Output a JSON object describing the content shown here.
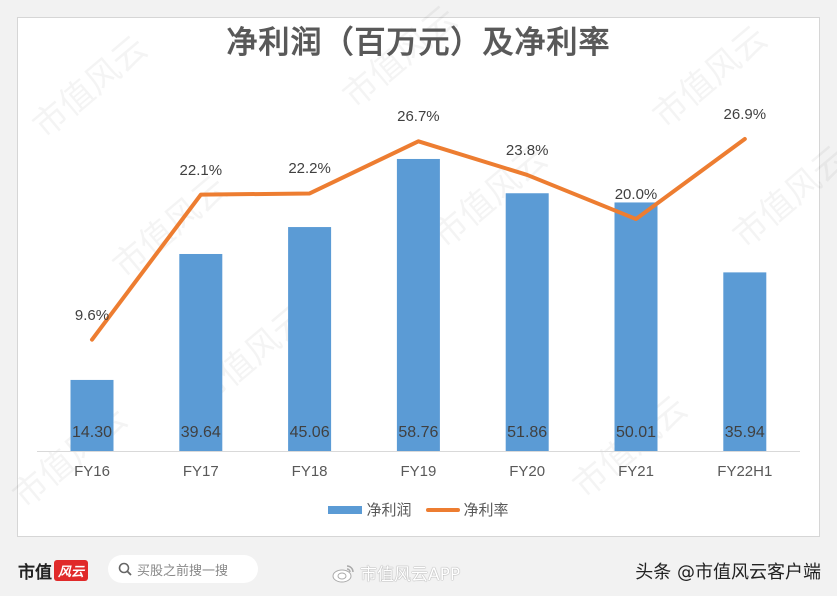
{
  "chart_data": {
    "type": "bar+line",
    "title": "净利润（百万元）及净利率",
    "categories": [
      "FY16",
      "FY17",
      "FY18",
      "FY19",
      "FY20",
      "FY21",
      "FY22H1"
    ],
    "series": [
      {
        "name": "净利润",
        "type": "bar",
        "axis": "left",
        "color": "#5b9bd5",
        "values": [
          14.3,
          39.64,
          45.06,
          58.76,
          51.86,
          50.01,
          35.94
        ],
        "labels": [
          "14.30",
          "39.64",
          "45.06",
          "58.76",
          "51.86",
          "50.01",
          "35.94"
        ]
      },
      {
        "name": "净利率",
        "type": "line",
        "axis": "right",
        "color": "#ed7d31",
        "values": [
          9.6,
          22.1,
          22.2,
          26.7,
          23.8,
          20.0,
          26.9
        ],
        "labels": [
          "9.6%",
          "22.1%",
          "22.2%",
          "26.7%",
          "23.8%",
          "20.0%",
          "26.9%"
        ]
      }
    ],
    "xlabel": "",
    "ylabel": "",
    "grid": false,
    "legend_position": "bottom"
  },
  "legend": {
    "bar": "净利润",
    "line": "净利率"
  },
  "footer": {
    "brand_text": "市值",
    "brand_badge": "风云",
    "search_placeholder": "买股之前搜一搜",
    "weibo_text": "市值风云APP",
    "toutiao_text": "头条 @市值风云客户端"
  },
  "watermark": "市值风云"
}
